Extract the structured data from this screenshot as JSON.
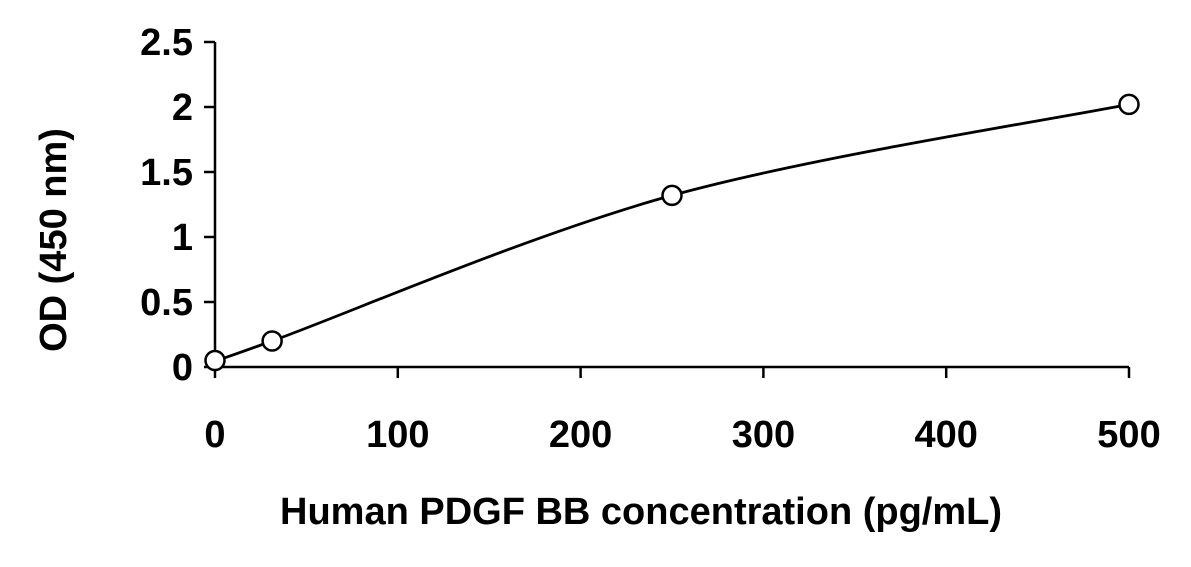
{
  "chart_data": {
    "type": "scatter",
    "xlabel": "Human PDGF BB concentration (pg/mL)",
    "ylabel": "OD (450 nm)",
    "xlim": [
      0,
      500
    ],
    "ylim": [
      0,
      2.5
    ],
    "xticks": [
      "0",
      "100",
      "200",
      "300",
      "400",
      "500"
    ],
    "yticks": [
      "0",
      "0.5",
      "1",
      "1.5",
      "2",
      "2.5"
    ],
    "grid": false,
    "series": [
      {
        "marker": "open-circle",
        "color": "#000000",
        "x": [
          0,
          31.25,
          250,
          500
        ],
        "y": [
          0.05,
          0.2,
          1.32,
          2.02
        ],
        "fit_line": "smooth-curve"
      }
    ]
  }
}
